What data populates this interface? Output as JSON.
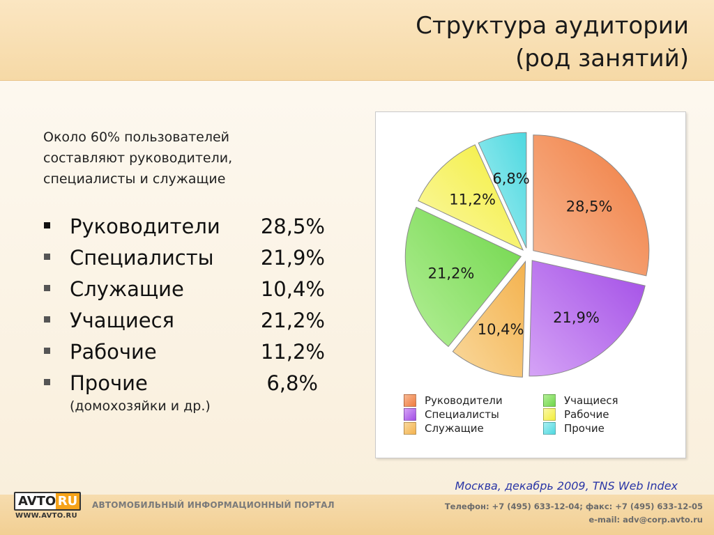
{
  "title": {
    "line1": "Структура аудитории",
    "line2": "(род занятий)"
  },
  "intro": "Около 60% пользователей составляют руководители, специалисты и служащие",
  "stats": [
    {
      "label": "Руководители",
      "value": "28,5%"
    },
    {
      "label": "Специалисты",
      "value": "21,9%"
    },
    {
      "label": "Служащие",
      "value": "10,4%"
    },
    {
      "label": "Учащиеся",
      "value": "21,2%"
    },
    {
      "label": "Рабочие",
      "value": "11,2%"
    },
    {
      "label": "Прочие",
      "value": "6,8%"
    }
  ],
  "stats_note": "(домохозяйки и др.)",
  "chart_data": {
    "type": "pie",
    "title": "",
    "slices": [
      {
        "label": "Руководители",
        "value": 28.5,
        "display": "28,5%",
        "color": "#f07b3e",
        "light": "#f8b994"
      },
      {
        "label": "Специалисты",
        "value": 21.9,
        "display": "21,9%",
        "color": "#a24de6",
        "light": "#d5a3f6"
      },
      {
        "label": "Служащие",
        "value": 10.4,
        "display": "10,4%",
        "color": "#f4b24e",
        "light": "#f9d89c"
      },
      {
        "label": "Учащиеся",
        "value": 21.2,
        "display": "21,2%",
        "color": "#6fd64a",
        "light": "#b4ef97"
      },
      {
        "label": "Рабочие",
        "value": 11.2,
        "display": "11,2%",
        "color": "#f3ee3a",
        "light": "#fbf8a6"
      },
      {
        "label": "Прочие",
        "value": 6.8,
        "display": "6,8%",
        "color": "#4ed8e0",
        "light": "#a8eff2"
      }
    ],
    "legend_position": "bottom"
  },
  "source": "Москва, декабрь 2009, TNS Web Index",
  "footer": {
    "logo_left": "AVTO",
    "logo_right": "RU",
    "logo_url": "WWW.AVTO.RU",
    "portal": "АВТОМОБИЛЬНЫЙ ИНФОРМАЦИОННЫЙ ПОРТАЛ",
    "phone": "Телефон: +7 (495) 633-12-04; факс: +7 (495) 633-12-05",
    "email": "e-mail: adv@corp.avto.ru"
  }
}
